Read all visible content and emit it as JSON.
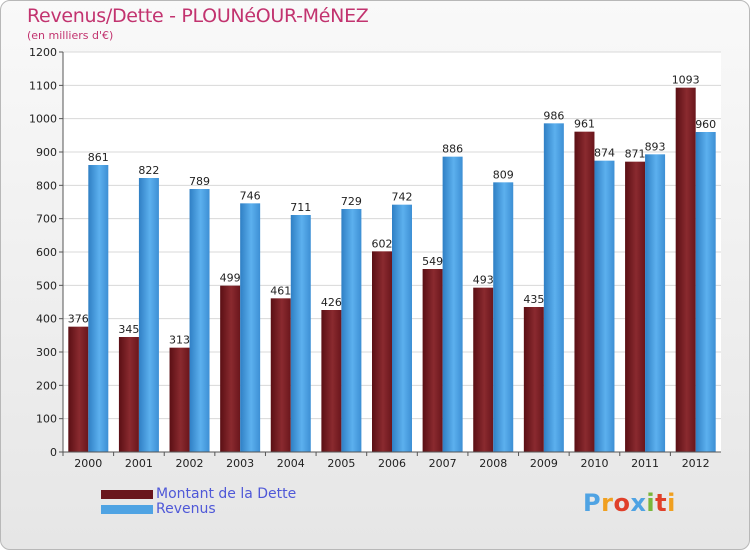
{
  "header": {
    "title": "Revenus/Dette - PLOUNéOUR-MéNEZ",
    "subtitle": "(en milliers d'€)"
  },
  "legend": {
    "dette_label": "Montant de la Dette",
    "revenus_label": "Revenus"
  },
  "logo": {
    "text": "Proxiti"
  },
  "colors": {
    "dette": "#7a1c22",
    "revenus": "#4fa3e3",
    "title": "#c2336f",
    "legend_text": "#4f58d8"
  },
  "chart_data": {
    "type": "bar",
    "title": "Revenus/Dette - PLOUNéOUR-MéNEZ",
    "ylabel": "(en milliers d'€)",
    "xlabel": "",
    "categories": [
      "2000",
      "2001",
      "2002",
      "2003",
      "2004",
      "2005",
      "2006",
      "2007",
      "2008",
      "2009",
      "2010",
      "2011",
      "2012"
    ],
    "series": [
      {
        "name": "Montant de la Dette",
        "values": [
          376,
          345,
          313,
          499,
          461,
          426,
          602,
          549,
          493,
          435,
          961,
          871,
          1093
        ]
      },
      {
        "name": "Revenus",
        "values": [
          861,
          822,
          789,
          746,
          711,
          729,
          742,
          886,
          809,
          986,
          874,
          893,
          960
        ]
      }
    ],
    "ylim": [
      0,
      1200
    ],
    "yticks": [
      0,
      100,
      200,
      300,
      400,
      500,
      600,
      700,
      800,
      900,
      1000,
      1100,
      1200
    ],
    "grid": true,
    "legend": "bottom-left"
  }
}
